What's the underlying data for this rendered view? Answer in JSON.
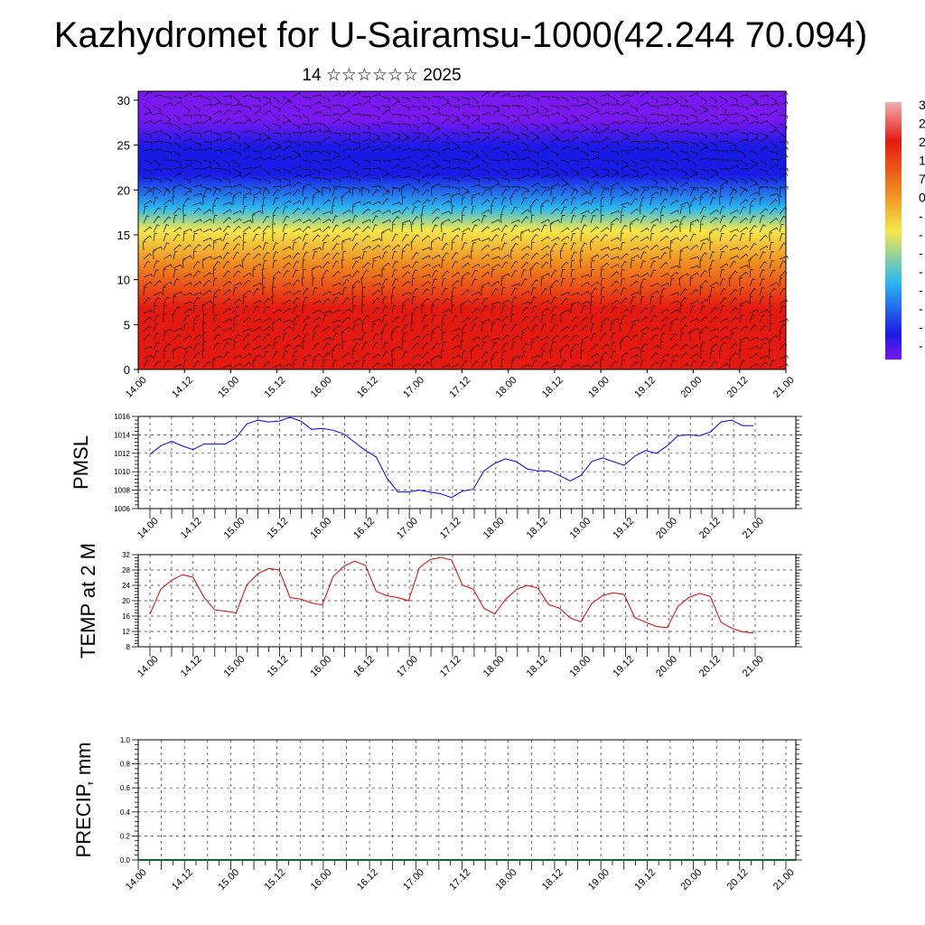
{
  "header": {
    "title": "Kazhydromet for U-Sairamsu-1000(42.244 70.094)",
    "subtitle": "14 ☆☆☆☆☆☆ 2025"
  },
  "chart_data": [
    {
      "type": "heatmap",
      "title": "",
      "xlabel": "",
      "ylabel": "",
      "x_tick_labels": [
        "14.00",
        "14.12",
        "15.00",
        "15.12",
        "16.00",
        "16.12",
        "17.00",
        "17.12",
        "18.00",
        "18.12",
        "19.00",
        "19.12",
        "20.00",
        "20.12",
        "21.00"
      ],
      "y_ticks": [
        0,
        5,
        10,
        15,
        20,
        25,
        30
      ],
      "ylim": [
        0,
        31
      ],
      "colorbar_labels": [
        "3",
        "2",
        "2",
        "1",
        "7",
        "0",
        "-",
        "-",
        "-",
        "-",
        "-",
        "-",
        "-",
        "-"
      ],
      "colors": {
        "low": "#7a18f0",
        "blue": "#1a1ae6",
        "cyan": "#2ab8f0",
        "yellow": "#f5e84a",
        "orange": "#f08a20",
        "red": "#e41a10"
      },
      "wind_barbs": true
    },
    {
      "type": "line",
      "ylabel": "PMSL",
      "y_ticks": [
        1006,
        1008,
        1010,
        1012,
        1014,
        1016
      ],
      "ylim": [
        1006,
        1016
      ],
      "x_tick_labels": [
        "14.00",
        "14.12",
        "15.00",
        "15.12",
        "16.00",
        "16.12",
        "17.00",
        "17.12",
        "18.00",
        "18.12",
        "19.00",
        "19.12",
        "20.00",
        "20.12",
        "21.00"
      ],
      "color": "#0000ff",
      "grid": true,
      "series": [
        {
          "values": [
            1011.9,
            1012.8,
            1013.3,
            1012.8,
            1012.4,
            1013.0,
            1013.0,
            1013.0,
            1013.7,
            1015.2,
            1015.6,
            1015.4,
            1015.5,
            1015.9,
            1015.5,
            1014.6,
            1014.7,
            1014.5,
            1014.1,
            1013.2,
            1012.3,
            1011.6,
            1009.3,
            1007.8,
            1007.8,
            1008.0,
            1007.8,
            1007.6,
            1007.2,
            1007.9,
            1008.1,
            1010.1,
            1010.9,
            1011.4,
            1011.1,
            1010.3,
            1010.1,
            1010.1,
            1009.6,
            1009.0,
            1009.6,
            1011.1,
            1011.5,
            1011.1,
            1010.7,
            1011.7,
            1012.3,
            1012.0,
            1012.8,
            1013.9,
            1014.0,
            1013.9,
            1014.3,
            1015.4,
            1015.6,
            1015.0,
            1015.0
          ]
        }
      ]
    },
    {
      "type": "line",
      "ylabel": "TEMP at 2 M",
      "y_ticks": [
        8,
        12,
        16,
        20,
        24,
        28,
        32
      ],
      "ylim": [
        8,
        32
      ],
      "x_tick_labels": [
        "14.00",
        "14.12",
        "15.00",
        "15.12",
        "16.00",
        "16.12",
        "17.00",
        "17.12",
        "18.00",
        "18.12",
        "19.00",
        "19.12",
        "20.00",
        "20.12",
        "21.00"
      ],
      "color": "#e00000",
      "grid": true,
      "series": [
        {
          "values": [
            16.5,
            23.0,
            25.3,
            26.8,
            26.1,
            21.0,
            17.6,
            17.3,
            16.8,
            24.2,
            27.0,
            28.4,
            28.0,
            20.8,
            20.4,
            19.4,
            18.9,
            26.3,
            29.0,
            30.3,
            29.2,
            22.4,
            21.3,
            20.8,
            20.0,
            28.6,
            30.7,
            31.3,
            30.6,
            24.1,
            23.0,
            18.0,
            16.6,
            20.3,
            22.9,
            24.0,
            23.3,
            19.0,
            18.1,
            15.5,
            14.5,
            19.3,
            21.3,
            22.1,
            21.6,
            15.6,
            14.4,
            13.3,
            13.0,
            18.5,
            20.8,
            21.9,
            21.1,
            14.4,
            12.8,
            11.9,
            11.6
          ]
        }
      ]
    },
    {
      "type": "line",
      "ylabel": "PRECIP, mm",
      "y_tick_labels": [
        "0.0",
        "0.2",
        "0.4",
        "0.6",
        "0.8",
        "1.0"
      ],
      "ylim": [
        0,
        1
      ],
      "x_tick_labels": [
        "14.00",
        "14.12",
        "15.00",
        "15.12",
        "16.00",
        "16.12",
        "17.00",
        "17.12",
        "18.00",
        "18.12",
        "19.00",
        "19.12",
        "20.00",
        "20.12",
        "21.00"
      ],
      "color": "#0a6b2c",
      "grid": true,
      "series": [
        {
          "values": [
            0,
            0,
            0,
            0,
            0,
            0,
            0,
            0,
            0,
            0,
            0,
            0,
            0,
            0,
            0,
            0,
            0,
            0,
            0,
            0,
            0,
            0,
            0,
            0,
            0,
            0,
            0,
            0,
            0,
            0,
            0,
            0,
            0,
            0,
            0,
            0,
            0,
            0,
            0,
            0,
            0,
            0,
            0,
            0,
            0,
            0,
            0,
            0,
            0,
            0,
            0,
            0,
            0,
            0,
            0,
            0,
            0
          ]
        }
      ]
    }
  ]
}
